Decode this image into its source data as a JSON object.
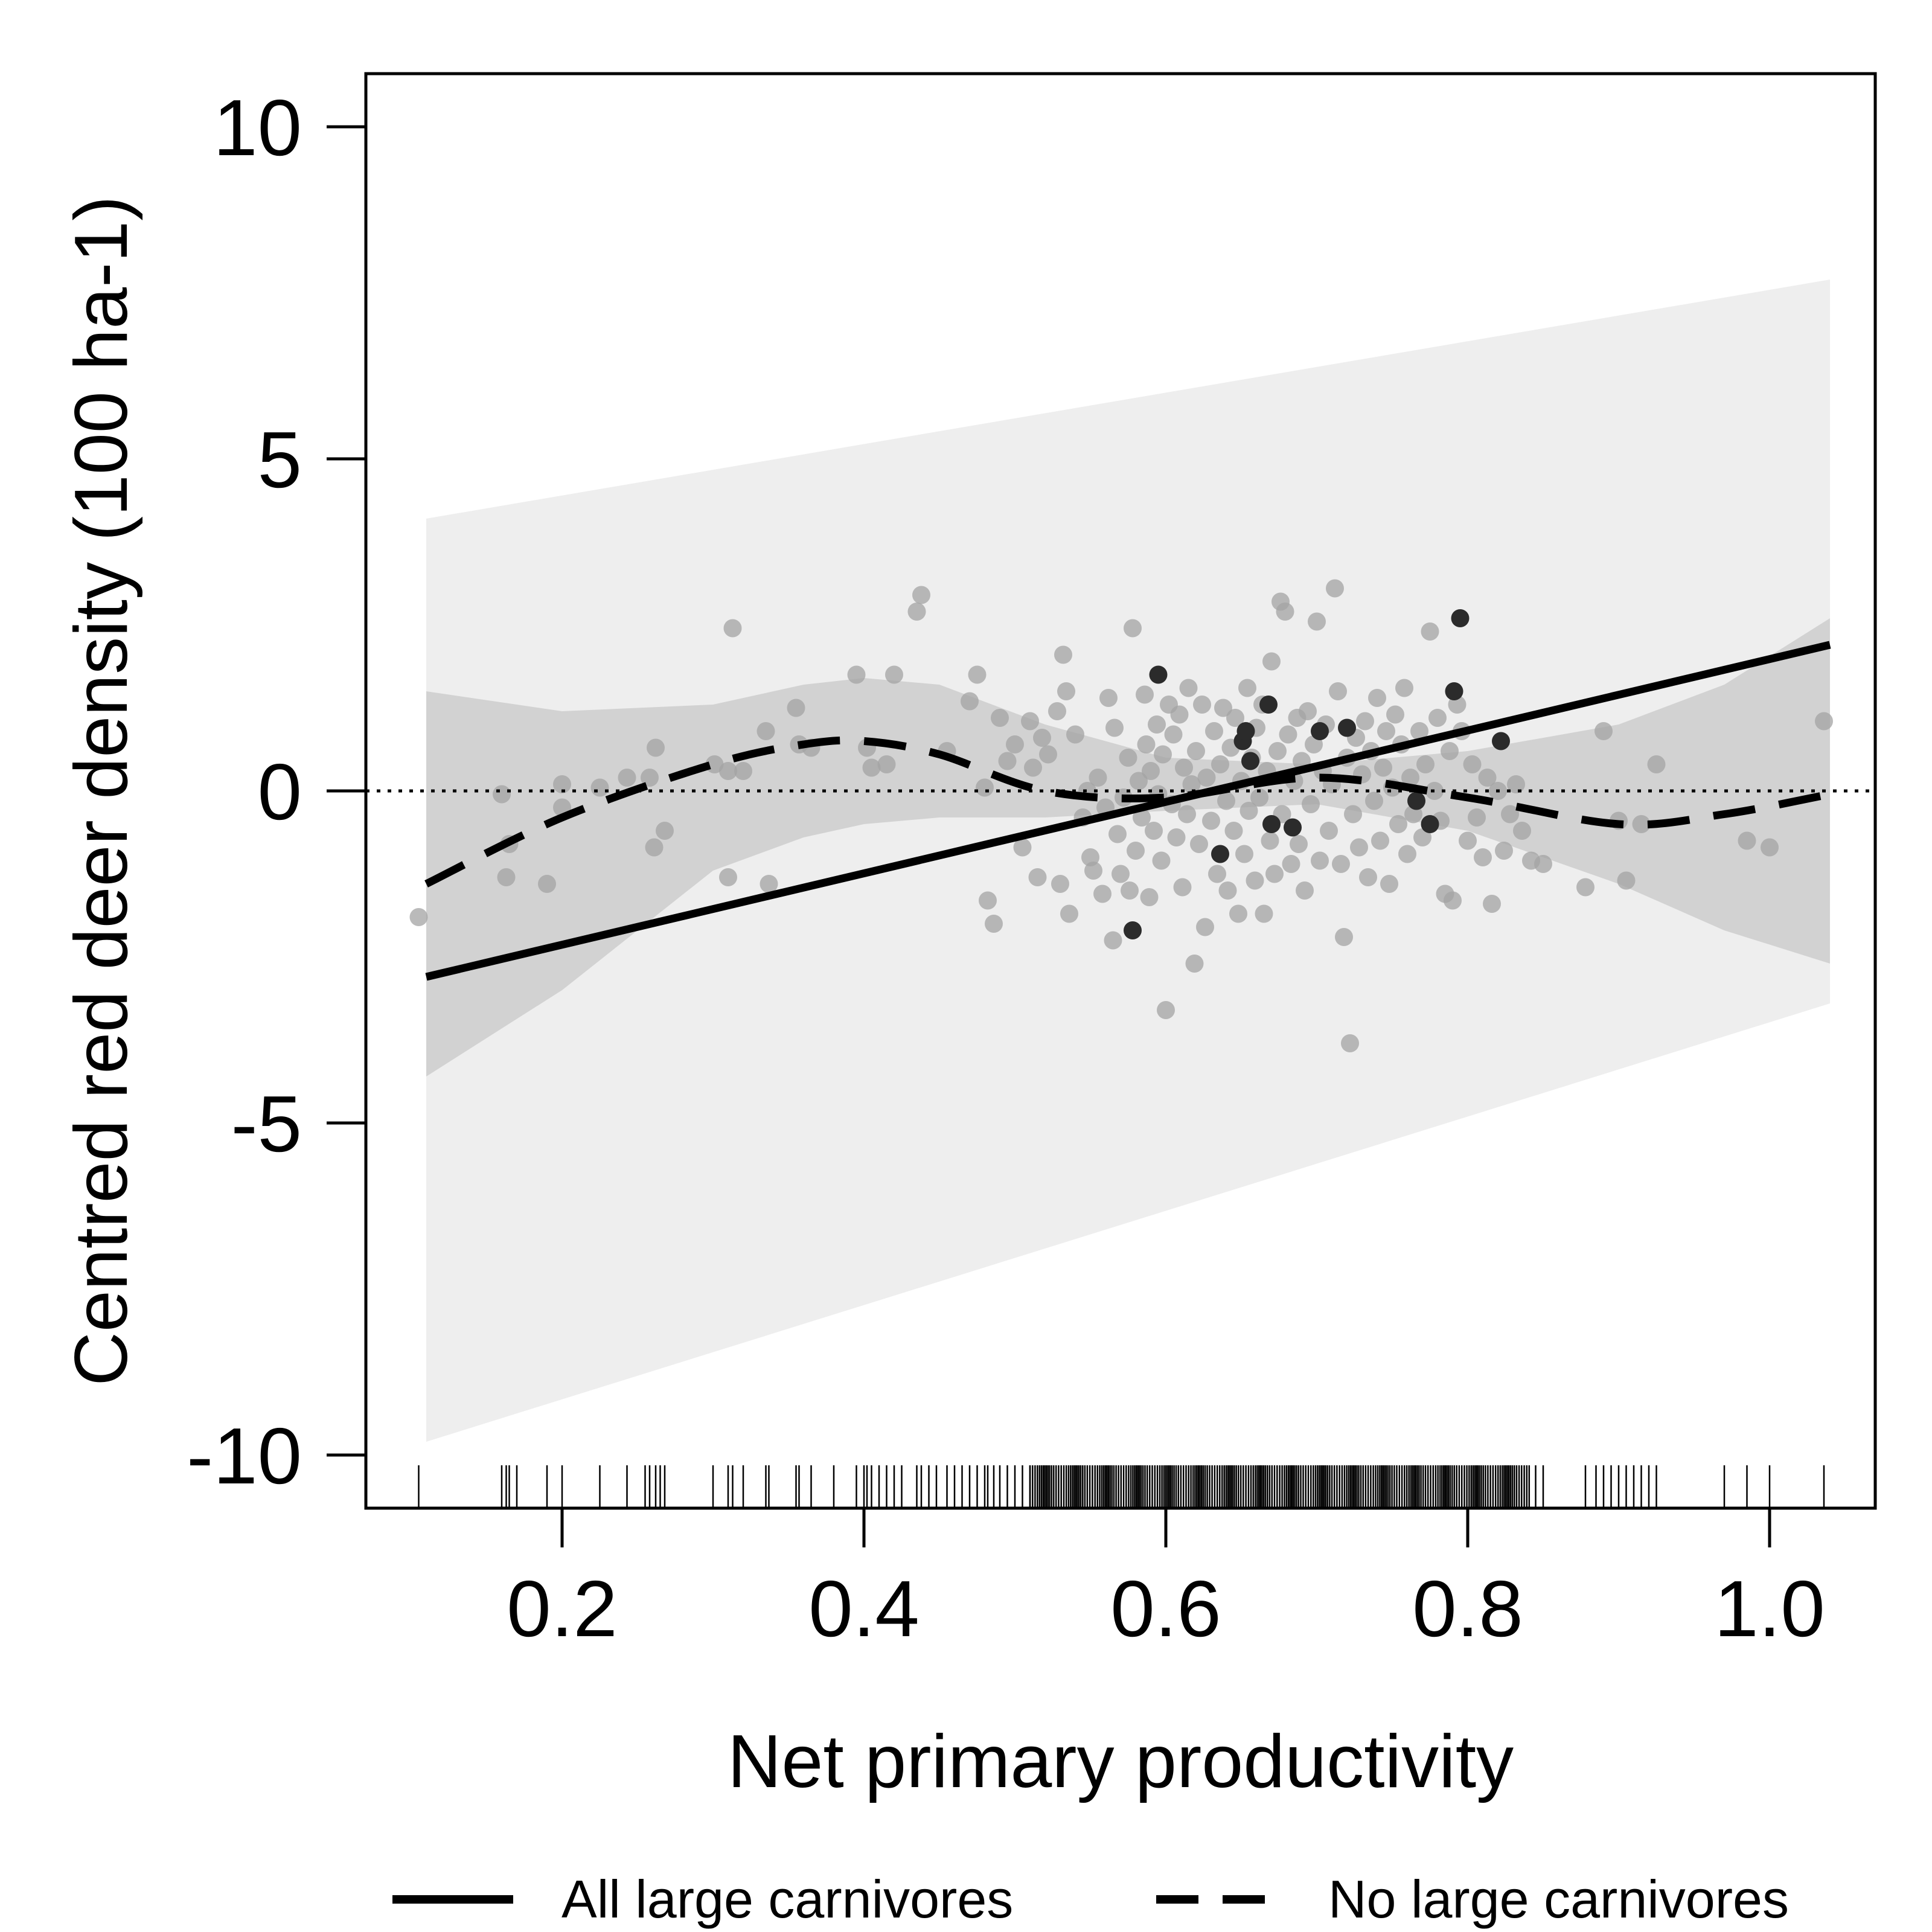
{
  "chart_data": {
    "type": "scatter",
    "xlabel": "Net primary productivity",
    "ylabel": "Centred red deer density (100 ha-1)",
    "xlim": [
      0.07,
      1.07
    ],
    "ylim": [
      -10.8,
      10.8
    ],
    "x_ticks": [
      0.2,
      0.4,
      0.6,
      0.8,
      1.0
    ],
    "x_tick_labels": [
      "0.2",
      "0.4",
      "0.6",
      "0.8",
      "1.0"
    ],
    "y_ticks": [
      10,
      5,
      0,
      -5,
      -10
    ],
    "y_tick_labels": [
      "10",
      "5",
      "0",
      "-5",
      "-10"
    ],
    "reference_line": {
      "y": 0,
      "style": "dotted"
    },
    "grid": false,
    "legend_position": "bottom",
    "colors": {
      "line": "#000000",
      "band_light": "#eeeeee",
      "band_dark": "#d2d2d2",
      "points_gray": "#a3a3a3",
      "points_dark": "#2b2b2b"
    },
    "series": [
      {
        "name": "All large carnivores",
        "line_style": "solid",
        "x": [
          0.11,
          1.04
        ],
        "y": [
          -2.8,
          2.2
        ],
        "ci_lower": [
          -9.8,
          -3.2
        ],
        "ci_upper": [
          4.1,
          7.7
        ]
      },
      {
        "name": "No large carnivores",
        "line_style": "dashed",
        "x": [
          0.11,
          0.2,
          0.3,
          0.36,
          0.4,
          0.45,
          0.52,
          0.6,
          0.7,
          0.8,
          0.9,
          0.97,
          1.04
        ],
        "y": [
          -1.4,
          -0.4,
          0.4,
          0.7,
          0.75,
          0.55,
          0.0,
          -0.1,
          0.2,
          -0.1,
          -0.5,
          -0.35,
          -0.05
        ],
        "ci_lower": [
          -4.3,
          -3.0,
          -1.2,
          -0.7,
          -0.5,
          -0.4,
          -0.4,
          -0.3,
          -0.2,
          -0.6,
          -1.4,
          -2.1,
          -2.6
        ],
        "ci_upper": [
          1.5,
          1.2,
          1.3,
          1.6,
          1.7,
          1.6,
          1.0,
          0.5,
          0.4,
          0.6,
          1.0,
          1.6,
          2.6
        ]
      }
    ],
    "points_dark": [
      [
        0.595,
        1.75
      ],
      [
        0.578,
        -2.1
      ],
      [
        0.636,
        -0.95
      ],
      [
        0.651,
        0.75
      ],
      [
        0.653,
        0.9
      ],
      [
        0.656,
        0.45
      ],
      [
        0.668,
        1.3
      ],
      [
        0.67,
        -0.5
      ],
      [
        0.684,
        -0.55
      ],
      [
        0.72,
        0.95
      ],
      [
        0.702,
        0.9
      ],
      [
        0.766,
        -0.15
      ],
      [
        0.775,
        -0.5
      ],
      [
        0.795,
        2.6
      ],
      [
        0.791,
        1.5
      ],
      [
        0.822,
        0.75
      ]
    ],
    "points": [
      [
        0.105,
        -1.9
      ],
      [
        0.16,
        -0.05
      ],
      [
        0.163,
        -1.3
      ],
      [
        0.165,
        -0.8
      ],
      [
        0.19,
        -1.4
      ],
      [
        0.2,
        0.1
      ],
      [
        0.2,
        -0.25
      ],
      [
        0.225,
        0.05
      ],
      [
        0.243,
        0.2
      ],
      [
        0.258,
        0.2
      ],
      [
        0.262,
        0.65
      ],
      [
        0.261,
        -0.85
      ],
      [
        0.268,
        -0.6
      ],
      [
        0.301,
        0.4
      ],
      [
        0.31,
        0.3
      ],
      [
        0.31,
        -1.3
      ],
      [
        0.313,
        2.45
      ],
      [
        0.32,
        0.3
      ],
      [
        0.335,
        0.9
      ],
      [
        0.337,
        -1.4
      ],
      [
        0.355,
        1.25
      ],
      [
        0.357,
        0.7
      ],
      [
        0.365,
        0.65
      ],
      [
        0.395,
        1.75
      ],
      [
        0.402,
        0.65
      ],
      [
        0.405,
        0.35
      ],
      [
        0.415,
        0.4
      ],
      [
        0.42,
        1.75
      ],
      [
        0.435,
        2.7
      ],
      [
        0.438,
        2.95
      ],
      [
        0.455,
        0.6
      ],
      [
        0.47,
        1.35
      ],
      [
        0.475,
        1.75
      ],
      [
        0.48,
        0.05
      ],
      [
        0.482,
        -1.65
      ],
      [
        0.486,
        -2.0
      ],
      [
        0.49,
        1.1
      ],
      [
        0.495,
        0.45
      ],
      [
        0.5,
        0.7
      ],
      [
        0.505,
        -0.85
      ],
      [
        0.51,
        1.05
      ],
      [
        0.512,
        0.35
      ],
      [
        0.515,
        -1.3
      ],
      [
        0.518,
        0.8
      ],
      [
        0.522,
        0.55
      ],
      [
        0.528,
        1.2
      ],
      [
        0.53,
        -1.4
      ],
      [
        0.532,
        2.05
      ],
      [
        0.534,
        1.5
      ],
      [
        0.536,
        -1.85
      ],
      [
        0.54,
        0.85
      ],
      [
        0.545,
        -0.4
      ],
      [
        0.548,
        0.0
      ],
      [
        0.55,
        -1.0
      ],
      [
        0.552,
        -1.2
      ],
      [
        0.555,
        0.2
      ],
      [
        0.558,
        -1.55
      ],
      [
        0.56,
        -0.25
      ],
      [
        0.562,
        1.4
      ],
      [
        0.565,
        -2.25
      ],
      [
        0.566,
        0.95
      ],
      [
        0.568,
        -0.65
      ],
      [
        0.57,
        -1.25
      ],
      [
        0.572,
        -0.1
      ],
      [
        0.575,
        0.5
      ],
      [
        0.576,
        -1.5
      ],
      [
        0.578,
        2.45
      ],
      [
        0.58,
        -0.9
      ],
      [
        0.582,
        0.15
      ],
      [
        0.584,
        -0.4
      ],
      [
        0.586,
        1.45
      ],
      [
        0.587,
        0.7
      ],
      [
        0.589,
        -1.6
      ],
      [
        0.59,
        0.3
      ],
      [
        0.592,
        -0.6
      ],
      [
        0.594,
        1.0
      ],
      [
        0.595,
        -0.05
      ],
      [
        0.597,
        -1.05
      ],
      [
        0.598,
        0.55
      ],
      [
        0.6,
        -3.3
      ],
      [
        0.602,
        1.3
      ],
      [
        0.604,
        -0.2
      ],
      [
        0.605,
        0.85
      ],
      [
        0.607,
        -0.7
      ],
      [
        0.609,
        1.15
      ],
      [
        0.611,
        -1.45
      ],
      [
        0.612,
        0.35
      ],
      [
        0.614,
        -0.35
      ],
      [
        0.615,
        1.55
      ],
      [
        0.617,
        0.1
      ],
      [
        0.619,
        -2.6
      ],
      [
        0.62,
        0.6
      ],
      [
        0.622,
        -0.8
      ],
      [
        0.624,
        1.3
      ],
      [
        0.626,
        -2.05
      ],
      [
        0.627,
        0.2
      ],
      [
        0.63,
        -0.45
      ],
      [
        0.632,
        0.9
      ],
      [
        0.634,
        -1.25
      ],
      [
        0.636,
        0.4
      ],
      [
        0.638,
        1.25
      ],
      [
        0.64,
        -0.15
      ],
      [
        0.641,
        -1.5
      ],
      [
        0.643,
        0.65
      ],
      [
        0.645,
        -0.6
      ],
      [
        0.646,
        1.1
      ],
      [
        0.648,
        -1.85
      ],
      [
        0.65,
        0.15
      ],
      [
        0.652,
        -0.95
      ],
      [
        0.654,
        1.55
      ],
      [
        0.655,
        -0.3
      ],
      [
        0.657,
        0.5
      ],
      [
        0.659,
        -1.35
      ],
      [
        0.66,
        0.95
      ],
      [
        0.662,
        -0.1
      ],
      [
        0.664,
        1.3
      ],
      [
        0.665,
        -1.85
      ],
      [
        0.667,
        0.3
      ],
      [
        0.669,
        -0.75
      ],
      [
        0.67,
        1.95
      ],
      [
        0.672,
        -1.25
      ],
      [
        0.674,
        0.6
      ],
      [
        0.676,
        2.85
      ],
      [
        0.677,
        -0.35
      ],
      [
        0.679,
        2.7
      ],
      [
        0.681,
        0.85
      ],
      [
        0.683,
        -1.1
      ],
      [
        0.685,
        0.15
      ],
      [
        0.687,
        1.1
      ],
      [
        0.688,
        -0.8
      ],
      [
        0.69,
        0.45
      ],
      [
        0.692,
        -1.5
      ],
      [
        0.694,
        1.2
      ],
      [
        0.696,
        -0.2
      ],
      [
        0.698,
        0.7
      ],
      [
        0.7,
        2.55
      ],
      [
        0.702,
        -1.05
      ],
      [
        0.704,
        0.3
      ],
      [
        0.706,
        1.0
      ],
      [
        0.708,
        -0.6
      ],
      [
        0.71,
        0.1
      ],
      [
        0.712,
        3.05
      ],
      [
        0.714,
        1.5
      ],
      [
        0.716,
        -1.1
      ],
      [
        0.718,
        -2.2
      ],
      [
        0.72,
        0.5
      ],
      [
        0.722,
        -3.8
      ],
      [
        0.724,
        -0.35
      ],
      [
        0.726,
        0.8
      ],
      [
        0.728,
        -0.85
      ],
      [
        0.73,
        0.25
      ],
      [
        0.732,
        1.05
      ],
      [
        0.734,
        -1.3
      ],
      [
        0.736,
        0.6
      ],
      [
        0.738,
        -0.15
      ],
      [
        0.74,
        1.4
      ],
      [
        0.742,
        -0.75
      ],
      [
        0.744,
        0.35
      ],
      [
        0.746,
        0.9
      ],
      [
        0.748,
        -1.4
      ],
      [
        0.75,
        0.05
      ],
      [
        0.752,
        1.15
      ],
      [
        0.754,
        -0.5
      ],
      [
        0.756,
        0.7
      ],
      [
        0.758,
        1.55
      ],
      [
        0.76,
        -0.95
      ],
      [
        0.762,
        0.2
      ],
      [
        0.764,
        -0.35
      ],
      [
        0.768,
        0.9
      ],
      [
        0.77,
        -0.7
      ],
      [
        0.772,
        0.4
      ],
      [
        0.775,
        2.4
      ],
      [
        0.778,
        0.0
      ],
      [
        0.78,
        1.1
      ],
      [
        0.782,
        -0.45
      ],
      [
        0.785,
        -1.55
      ],
      [
        0.788,
        0.6
      ],
      [
        0.79,
        -1.65
      ],
      [
        0.793,
        1.3
      ],
      [
        0.796,
        0.9
      ],
      [
        0.8,
        -0.75
      ],
      [
        0.803,
        0.4
      ],
      [
        0.806,
        -0.4
      ],
      [
        0.81,
        -1.0
      ],
      [
        0.813,
        0.2
      ],
      [
        0.816,
        -1.7
      ],
      [
        0.82,
        0.0
      ],
      [
        0.824,
        -0.9
      ],
      [
        0.828,
        -0.35
      ],
      [
        0.832,
        0.1
      ],
      [
        0.836,
        -0.6
      ],
      [
        0.842,
        -1.05
      ],
      [
        0.85,
        -1.1
      ],
      [
        0.878,
        -1.45
      ],
      [
        0.89,
        0.9
      ],
      [
        0.9,
        -0.45
      ],
      [
        0.905,
        -1.35
      ],
      [
        0.915,
        -0.5
      ],
      [
        0.925,
        0.4
      ],
      [
        0.985,
        -0.75
      ],
      [
        1.0,
        -0.85
      ],
      [
        1.036,
        1.05
      ]
    ],
    "rug_x": [
      0.105,
      0.16,
      0.163,
      0.165,
      0.17,
      0.19,
      0.2,
      0.225,
      0.243,
      0.255,
      0.258,
      0.262,
      0.265,
      0.268,
      0.3,
      0.31,
      0.313,
      0.32,
      0.335,
      0.337,
      0.355,
      0.357,
      0.365,
      0.38,
      0.395,
      0.4,
      0.402,
      0.405,
      0.41,
      0.415,
      0.42,
      0.425,
      0.435,
      0.438,
      0.443,
      0.448,
      0.455,
      0.46,
      0.465,
      0.47,
      0.475,
      0.48,
      0.482,
      0.486,
      0.49,
      0.495,
      0.5,
      0.505,
      0.51,
      0.845,
      0.85,
      0.878,
      0.885,
      0.89,
      0.895,
      0.9,
      0.905,
      0.91,
      0.915,
      0.92,
      0.925,
      0.97,
      0.985,
      1.0,
      1.036
    ],
    "rug_dense_range": [
      0.51,
      0.84
    ]
  }
}
